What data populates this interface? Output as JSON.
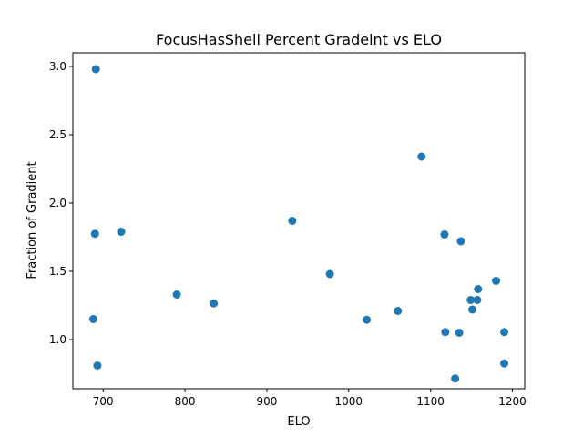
{
  "chart_data": {
    "type": "scatter",
    "title": "FocusHasShell Percent Gradeint vs ELO",
    "xlabel": "ELO",
    "ylabel": "Fraction of Gradient",
    "xlim": [
      663,
      1215
    ],
    "ylim": [
      0.64,
      3.1
    ],
    "xticks": [
      700,
      800,
      900,
      1000,
      1100,
      1200
    ],
    "yticks": [
      1.0,
      1.5,
      2.0,
      2.5,
      3.0
    ],
    "xtick_labels": [
      "700",
      "800",
      "900",
      "1000",
      "1100",
      "1200"
    ],
    "ytick_labels": [
      "1.0",
      "1.5",
      "2.0",
      "2.5",
      "3.0"
    ],
    "grid": false,
    "marker_color": "#1f77b4",
    "series": [
      {
        "x": [
          691,
          690,
          722,
          688,
          693,
          790,
          835,
          931,
          977,
          1022,
          1060,
          1089,
          1117,
          1118,
          1130,
          1135,
          1137,
          1149,
          1151,
          1157,
          1158,
          1180,
          1190,
          1190
        ],
        "y": [
          2.98,
          1.775,
          1.79,
          1.15,
          0.81,
          1.33,
          1.265,
          1.87,
          1.48,
          1.145,
          1.21,
          2.34,
          1.77,
          1.055,
          0.715,
          1.05,
          1.72,
          1.29,
          1.22,
          1.29,
          1.37,
          1.43,
          1.055,
          0.825
        ]
      }
    ]
  }
}
